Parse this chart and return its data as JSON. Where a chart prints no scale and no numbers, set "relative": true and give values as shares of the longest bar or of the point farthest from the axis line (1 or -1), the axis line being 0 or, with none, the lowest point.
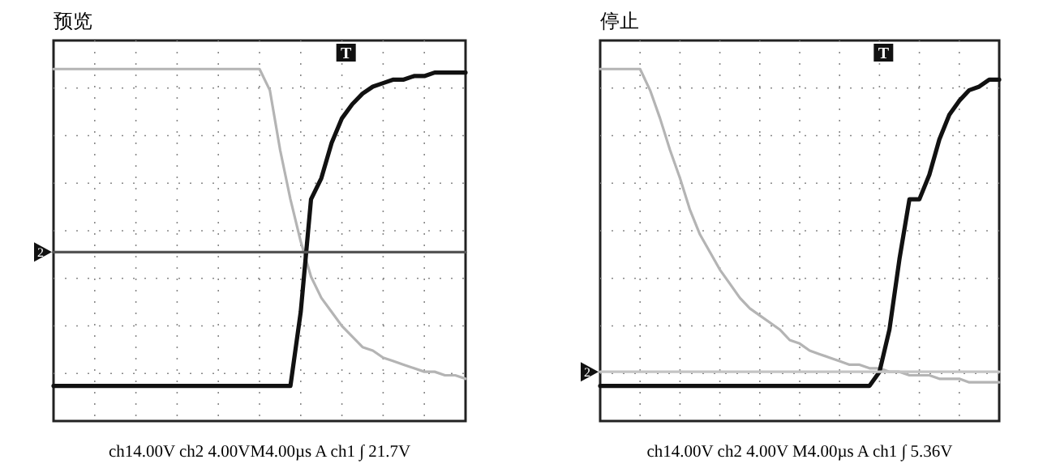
{
  "chart_data": [
    {
      "type": "line",
      "title": "预览",
      "relative": true,
      "grid": true,
      "categories": [
        null,
        null,
        null,
        null,
        null,
        null,
        null,
        null,
        null,
        null,
        null,
        null,
        null,
        null,
        null,
        null,
        null,
        null,
        null,
        null,
        null,
        null,
        null,
        null,
        null,
        null,
        null,
        null,
        null,
        null,
        null,
        null,
        null,
        null,
        null,
        null,
        null,
        null,
        null,
        null,
        null
      ],
      "series": [
        {
          "color": "#b4b4b4",
          "values": [
            1,
            1,
            1,
            1,
            1,
            1,
            1,
            1,
            1,
            1,
            1,
            1,
            1,
            1,
            1,
            1,
            1,
            1,
            1,
            1,
            1,
            0.94,
            0.77,
            0.63,
            0.51,
            0.41,
            0.35,
            0.31,
            0.27,
            0.24,
            0.21,
            0.2,
            0.18,
            0.17,
            0.16,
            0.15,
            0.14,
            0.14,
            0.13,
            0.13,
            0.12
          ]
        },
        {
          "color": "#111111",
          "values": [
            0.1,
            0.1,
            0.1,
            0.1,
            0.1,
            0.1,
            0.1,
            0.1,
            0.1,
            0.1,
            0.1,
            0.1,
            0.1,
            0.1,
            0.1,
            0.1,
            0.1,
            0.1,
            0.1,
            0.1,
            0.1,
            0.1,
            0.1,
            0.1,
            0.31,
            0.63,
            0.69,
            0.79,
            0.86,
            0.9,
            0.93,
            0.95,
            0.96,
            0.97,
            0.97,
            0.98,
            0.98,
            0.99,
            0.99,
            0.99,
            0.99
          ]
        },
        {
          "color": "#555555",
          "values": [
            0.48,
            0.48,
            0.48,
            0.48,
            0.48,
            0.48,
            0.48,
            0.48,
            0.48,
            0.48,
            0.48,
            0.48,
            0.48,
            0.48,
            0.48,
            0.48,
            0.48,
            0.48,
            0.48,
            0.48,
            0.48,
            0.48,
            0.48,
            0.48,
            0.48,
            0.48,
            0.48,
            0.48,
            0.48,
            0.48,
            0.48,
            0.48,
            0.48,
            0.48,
            0.48,
            0.48,
            0.48,
            0.48,
            0.48,
            0.48,
            0.48
          ]
        }
      ],
      "annotations": [
        "ch14.00V ch2 4.00VM4.00µs A ch1 ∫ 21.7V",
        "T",
        "2"
      ]
    },
    {
      "type": "line",
      "title": "停止",
      "relative": true,
      "grid": true,
      "categories": [
        null,
        null,
        null,
        null,
        null,
        null,
        null,
        null,
        null,
        null,
        null,
        null,
        null,
        null,
        null,
        null,
        null,
        null,
        null,
        null,
        null,
        null,
        null,
        null,
        null,
        null,
        null,
        null,
        null,
        null,
        null,
        null,
        null,
        null,
        null,
        null,
        null,
        null,
        null,
        null,
        null
      ],
      "series": [
        {
          "color": "#b4b4b4",
          "values": [
            1,
            1,
            1,
            1,
            1,
            0.94,
            0.86,
            0.77,
            0.69,
            0.6,
            0.53,
            0.48,
            0.43,
            0.39,
            0.35,
            0.32,
            0.3,
            0.28,
            0.26,
            0.23,
            0.22,
            0.2,
            0.19,
            0.18,
            0.17,
            0.16,
            0.16,
            0.15,
            0.15,
            0.14,
            0.14,
            0.13,
            0.13,
            0.13,
            0.12,
            0.12,
            0.12,
            0.11,
            0.11,
            0.11,
            0.11
          ]
        },
        {
          "color": "#111111",
          "values": [
            0.1,
            0.1,
            0.1,
            0.1,
            0.1,
            0.1,
            0.1,
            0.1,
            0.1,
            0.1,
            0.1,
            0.1,
            0.1,
            0.1,
            0.1,
            0.1,
            0.1,
            0.1,
            0.1,
            0.1,
            0.1,
            0.1,
            0.1,
            0.1,
            0.1,
            0.1,
            0.1,
            0.1,
            0.14,
            0.26,
            0.46,
            0.63,
            0.63,
            0.7,
            0.8,
            0.87,
            0.91,
            0.94,
            0.95,
            0.97,
            0.97
          ]
        },
        {
          "color": "#c4c4c4",
          "values": [
            0.14,
            0.14,
            0.14,
            0.14,
            0.14,
            0.14,
            0.14,
            0.14,
            0.14,
            0.14,
            0.14,
            0.14,
            0.14,
            0.14,
            0.14,
            0.14,
            0.14,
            0.14,
            0.14,
            0.14,
            0.14,
            0.14,
            0.14,
            0.14,
            0.14,
            0.14,
            0.14,
            0.14,
            0.14,
            0.14,
            0.14,
            0.14,
            0.14,
            0.14,
            0.14,
            0.14,
            0.14,
            0.14,
            0.14,
            0.14,
            0.14
          ]
        }
      ],
      "annotations": [
        "ch14.00V ch2 4.00V M4.00µs A ch1 ∫ 5.36V",
        "T",
        "2"
      ]
    }
  ]
}
